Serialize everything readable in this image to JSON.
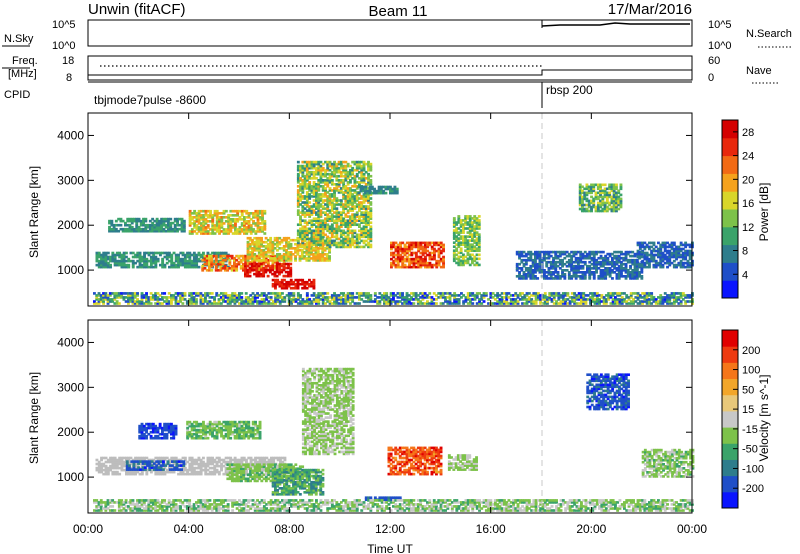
{
  "header": {
    "site": "Unwin (fitACF)",
    "beam": "Beam 11",
    "date": "17/Mar/2016"
  },
  "top_panels": {
    "nsky_label": "N.Sky",
    "nsky_ticks": [
      "10^5",
      "10^0"
    ],
    "nsearch_label": "N.Search",
    "nsearch_ticks": [
      "10^5",
      "10^0"
    ],
    "freq_label_1": "Freq.",
    "freq_label_2": "[MHz]",
    "freq_ticks": [
      "18",
      "8"
    ],
    "nave_label": "Nave",
    "nave_ticks": [
      "60",
      "0"
    ],
    "cpid_label": "CPID",
    "cpid_segments": [
      {
        "name": "tbjmode7pulse -8600",
        "start_hour": 0,
        "end_hour": 18
      },
      {
        "name": "rbsp 200",
        "start_hour": 18,
        "end_hour": 24
      }
    ]
  },
  "colors": {
    "power_scale": [
      "#0a14ff",
      "#1f4fc8",
      "#2e7d8c",
      "#3aa36a",
      "#7dc24a",
      "#d9d62a",
      "#f5a21c",
      "#f26a14",
      "#e8280c",
      "#d40000"
    ],
    "velocity_scale": [
      "#0a14ff",
      "#1f4fc8",
      "#2e7d8c",
      "#3aa36a",
      "#7dc24a",
      "#c8c8c8",
      "#e8c87a",
      "#f2a62a",
      "#f5761a",
      "#ee3a10",
      "#e00000"
    ],
    "ground_scatter": "#bdbdbd"
  },
  "chart_data": [
    {
      "type": "heatmap",
      "title": "",
      "xlabel": "",
      "ylabel": "Slant Range [km]",
      "xlim": [
        0,
        24
      ],
      "ylim": [
        200,
        4500
      ],
      "x_ticks": [
        "00:00",
        "04:00",
        "08:00",
        "12:00",
        "16:00",
        "20:00",
        "00:00"
      ],
      "y_ticks": [
        "1000",
        "2000",
        "3000",
        "4000"
      ],
      "colorbar": {
        "label": "Power [dB]",
        "ticks": [
          "4",
          "8",
          "12",
          "16",
          "20",
          "24",
          "28"
        ],
        "range": [
          0,
          30
        ]
      },
      "regions": [
        {
          "t0": 0.3,
          "t1": 5.6,
          "r0": 1050,
          "r1": 1380,
          "value": 9,
          "spread": 3
        },
        {
          "t0": 4.5,
          "t1": 7.8,
          "r0": 980,
          "r1": 1300,
          "value": 21,
          "spread": 5
        },
        {
          "t0": 6.2,
          "t1": 8.0,
          "r0": 850,
          "r1": 1150,
          "value": 27,
          "spread": 3
        },
        {
          "t0": 7.3,
          "t1": 9.0,
          "r0": 580,
          "r1": 800,
          "value": 27,
          "spread": 3
        },
        {
          "t0": 6.3,
          "t1": 9.6,
          "r0": 1200,
          "r1": 1700,
          "value": 17,
          "spread": 4
        },
        {
          "t0": 4.0,
          "t1": 7.0,
          "r0": 1800,
          "r1": 2300,
          "value": 17,
          "spread": 5
        },
        {
          "t0": 0.8,
          "t1": 3.8,
          "r0": 1850,
          "r1": 2150,
          "value": 9,
          "spread": 3
        },
        {
          "t0": 8.3,
          "t1": 11.2,
          "r0": 1500,
          "r1": 3400,
          "value": 14,
          "spread": 6
        },
        {
          "t0": 10.7,
          "t1": 12.3,
          "r0": 2700,
          "r1": 2850,
          "value": 8,
          "spread": 2
        },
        {
          "t0": 12.0,
          "t1": 14.1,
          "r0": 1050,
          "r1": 1600,
          "value": 24,
          "spread": 5
        },
        {
          "t0": 14.5,
          "t1": 15.5,
          "r0": 1100,
          "r1": 2200,
          "value": 13,
          "spread": 4
        },
        {
          "t0": 19.5,
          "t1": 21.2,
          "r0": 2300,
          "r1": 2900,
          "value": 12,
          "spread": 5
        },
        {
          "t0": 21.8,
          "t1": 24.0,
          "r0": 1050,
          "r1": 1600,
          "value": 6,
          "spread": 3
        },
        {
          "t0": 17.0,
          "t1": 22.0,
          "r0": 800,
          "r1": 1400,
          "value": 6,
          "spread": 3
        },
        {
          "t0": 0.2,
          "t1": 24.0,
          "r0": 240,
          "r1": 480,
          "value": 10,
          "spread": 8
        }
      ]
    },
    {
      "type": "heatmap",
      "title": "",
      "xlabel": "Time UT",
      "ylabel": "Slant Range [km]",
      "xlim": [
        0,
        24
      ],
      "ylim": [
        200,
        4500
      ],
      "x_ticks": [
        "00:00",
        "04:00",
        "08:00",
        "12:00",
        "16:00",
        "20:00",
        "00:00"
      ],
      "y_ticks": [
        "1000",
        "2000",
        "3000",
        "4000"
      ],
      "colorbar": {
        "label": "Velocity [m s^-1]",
        "ticks": [
          "200",
          "100",
          "50",
          "15",
          "-15",
          "-50",
          "-100",
          "-200"
        ],
        "range": [
          -250,
          250
        ]
      },
      "regions": [
        {
          "t0": 0.3,
          "t1": 7.8,
          "r0": 1050,
          "r1": 1450,
          "value": 0,
          "spread": 12,
          "ground": true
        },
        {
          "t0": 1.5,
          "t1": 3.8,
          "r0": 1150,
          "r1": 1350,
          "value": -170,
          "spread": 40
        },
        {
          "t0": 2.0,
          "t1": 3.5,
          "r0": 1850,
          "r1": 2200,
          "value": -190,
          "spread": 30
        },
        {
          "t0": 3.9,
          "t1": 6.8,
          "r0": 1850,
          "r1": 2250,
          "value": -60,
          "spread": 40
        },
        {
          "t0": 5.5,
          "t1": 8.5,
          "r0": 900,
          "r1": 1300,
          "value": -50,
          "spread": 30
        },
        {
          "t0": 7.3,
          "t1": 9.3,
          "r0": 600,
          "r1": 1150,
          "value": -90,
          "spread": 60
        },
        {
          "t0": 8.5,
          "t1": 10.5,
          "r0": 1500,
          "r1": 3400,
          "value": -30,
          "spread": 30
        },
        {
          "t0": 11.9,
          "t1": 14.0,
          "r0": 1050,
          "r1": 1650,
          "value": 170,
          "spread": 60
        },
        {
          "t0": 14.3,
          "t1": 15.4,
          "r0": 1150,
          "r1": 1500,
          "value": -30,
          "spread": 25
        },
        {
          "t0": 11.0,
          "t1": 12.4,
          "r0": 480,
          "r1": 540,
          "value": -180,
          "spread": 30
        },
        {
          "t0": 19.8,
          "t1": 21.5,
          "r0": 2500,
          "r1": 3300,
          "value": -180,
          "spread": 40
        },
        {
          "t0": 22.0,
          "t1": 24.0,
          "r0": 1000,
          "r1": 1600,
          "value": -40,
          "spread": 40
        },
        {
          "t0": 0.2,
          "t1": 24.0,
          "r0": 240,
          "r1": 480,
          "value": -40,
          "spread": 60
        }
      ]
    }
  ]
}
